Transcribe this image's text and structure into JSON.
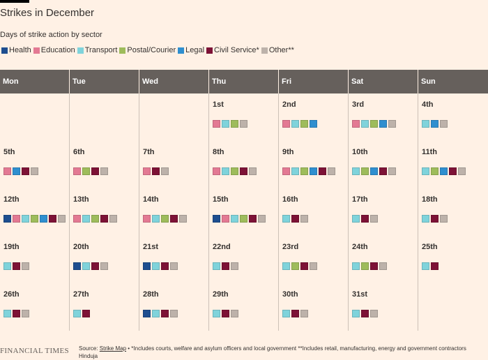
{
  "title": "Strikes in December",
  "subtitle": "Days of strike action by sector",
  "colors": {
    "health": "#1e4e8f",
    "education": "#e37993",
    "transport": "#7fd3db",
    "postal": "#9ebc5b",
    "legal": "#2f8fcf",
    "civil": "#7d1236",
    "other": "#bdb2aa"
  },
  "chart_data": {
    "type": "table",
    "legend": [
      {
        "key": "health",
        "label": "Health"
      },
      {
        "key": "education",
        "label": "Education"
      },
      {
        "key": "transport",
        "label": "Transport"
      },
      {
        "key": "postal",
        "label": "Postal/Courier"
      },
      {
        "key": "legal",
        "label": "Legal"
      },
      {
        "key": "civil",
        "label": "Civil Service*"
      },
      {
        "key": "other",
        "label": "Other**"
      }
    ],
    "weekdays": [
      "Mon",
      "Tue",
      "Wed",
      "Thu",
      "Fri",
      "Sat",
      "Sun"
    ],
    "weeks": [
      [
        null,
        null,
        null,
        {
          "label": "1st",
          "sectors": [
            "education",
            "transport",
            "postal",
            "other"
          ]
        },
        {
          "label": "2nd",
          "sectors": [
            "education",
            "transport",
            "postal",
            "legal"
          ]
        },
        {
          "label": "3rd",
          "sectors": [
            "education",
            "transport",
            "postal",
            "legal",
            "other"
          ]
        },
        {
          "label": "4th",
          "sectors": [
            "transport",
            "legal",
            "other"
          ]
        }
      ],
      [
        {
          "label": "5th",
          "sectors": [
            "education",
            "legal",
            "civil",
            "other"
          ]
        },
        {
          "label": "6th",
          "sectors": [
            "education",
            "postal",
            "civil",
            "other"
          ]
        },
        {
          "label": "7th",
          "sectors": [
            "education",
            "civil",
            "other"
          ]
        },
        {
          "label": "8th",
          "sectors": [
            "education",
            "transport",
            "postal",
            "civil",
            "other"
          ]
        },
        {
          "label": "9th",
          "sectors": [
            "education",
            "transport",
            "postal",
            "legal",
            "civil",
            "other"
          ]
        },
        {
          "label": "10th",
          "sectors": [
            "transport",
            "postal",
            "legal",
            "civil",
            "other"
          ]
        },
        {
          "label": "11th",
          "sectors": [
            "transport",
            "postal",
            "legal",
            "civil",
            "other"
          ]
        }
      ],
      [
        {
          "label": "12th",
          "sectors": [
            "health",
            "education",
            "transport",
            "postal",
            "legal",
            "civil",
            "other"
          ]
        },
        {
          "label": "13th",
          "sectors": [
            "education",
            "transport",
            "postal",
            "civil",
            "other"
          ]
        },
        {
          "label": "14th",
          "sectors": [
            "education",
            "transport",
            "postal",
            "civil",
            "other"
          ]
        },
        {
          "label": "15th",
          "sectors": [
            "health",
            "education",
            "transport",
            "postal",
            "civil",
            "other"
          ]
        },
        {
          "label": "16th",
          "sectors": [
            "transport",
            "civil",
            "other"
          ]
        },
        {
          "label": "17th",
          "sectors": [
            "transport",
            "civil",
            "other"
          ]
        },
        {
          "label": "18th",
          "sectors": [
            "transport",
            "civil",
            "other"
          ]
        }
      ],
      [
        {
          "label": "19th",
          "sectors": [
            "transport",
            "civil",
            "other"
          ]
        },
        {
          "label": "20th",
          "sectors": [
            "health",
            "transport",
            "civil",
            "other"
          ]
        },
        {
          "label": "21st",
          "sectors": [
            "health",
            "transport",
            "civil",
            "other"
          ]
        },
        {
          "label": "22nd",
          "sectors": [
            "transport",
            "civil",
            "other"
          ]
        },
        {
          "label": "23rd",
          "sectors": [
            "transport",
            "postal",
            "civil",
            "other"
          ]
        },
        {
          "label": "24th",
          "sectors": [
            "transport",
            "postal",
            "civil",
            "other"
          ]
        },
        {
          "label": "25th",
          "sectors": [
            "transport",
            "civil"
          ]
        }
      ],
      [
        {
          "label": "26th",
          "sectors": [
            "transport",
            "civil",
            "other"
          ]
        },
        {
          "label": "27th",
          "sectors": [
            "transport",
            "civil"
          ]
        },
        {
          "label": "28th",
          "sectors": [
            "health",
            "transport",
            "civil",
            "other"
          ]
        },
        {
          "label": "29th",
          "sectors": [
            "transport",
            "civil",
            "other"
          ]
        },
        {
          "label": "30th",
          "sectors": [
            "transport",
            "civil",
            "other"
          ]
        },
        {
          "label": "31st",
          "sectors": [
            "transport",
            "civil",
            "other"
          ]
        },
        null
      ]
    ]
  },
  "footer": {
    "brand": "FINANCIAL TIMES",
    "source_prefix": "Source: ",
    "source_link": "Strike Map",
    "source_notes": " • *Includes courts, welfare and asylum officers and local government **Includes retail, manufacturing, energy and government contractors",
    "credit": "Hinduja"
  }
}
